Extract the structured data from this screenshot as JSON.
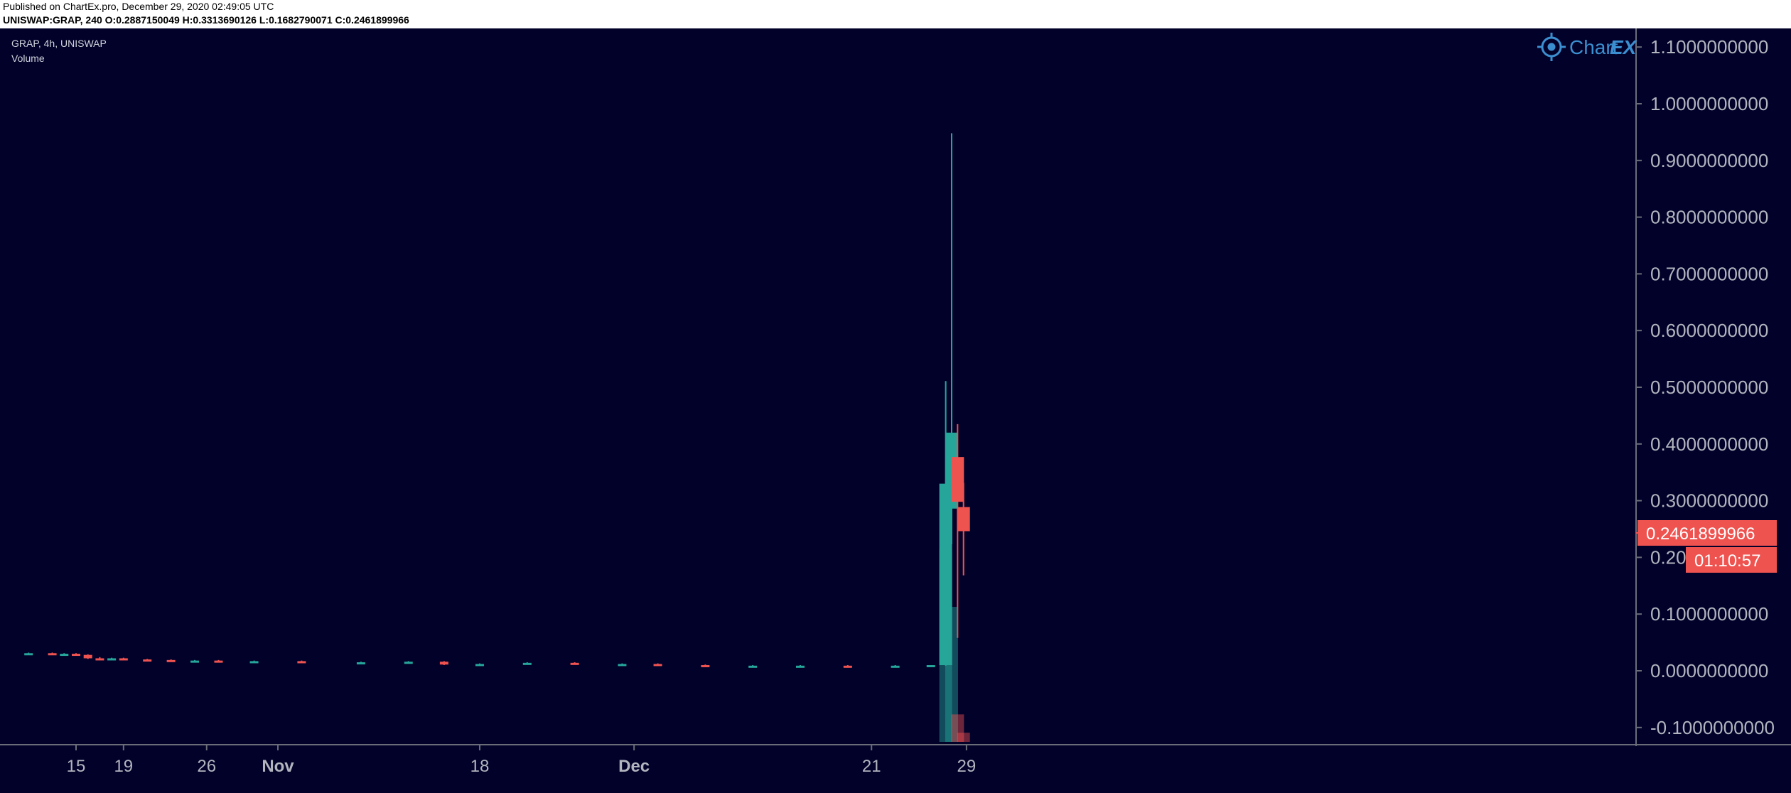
{
  "header": {
    "published": "Published on ChartEx.pro, December 29, 2020 02:49:05 UTC",
    "ohlc": "UNISWAP:GRAP, 240  O:0.2887150049  H:0.3313690126  L:0.1682790071  C:0.2461899966"
  },
  "legend": {
    "symbol": "GRAP, 4h, UNISWAP",
    "volume": "Volume"
  },
  "watermark": {
    "name": "Chart",
    "suffix": "EX"
  },
  "price_tag": {
    "last": "0.2461899966",
    "countdown": "01:10:57"
  },
  "colors": {
    "background": "#02012a",
    "up": "#26a69a",
    "down": "#ef5350",
    "axis_text": "#b2b5be",
    "watermark": "#3b8fd0"
  },
  "chart_data": {
    "type": "candlestick",
    "interval": "4h",
    "y_ticks": [
      "1.1000000000",
      "1.0000000000",
      "0.9000000000",
      "0.8000000000",
      "0.7000000000",
      "0.6000000000",
      "0.5000000000",
      "0.4000000000",
      "0.3000000000",
      "0.20",
      "0.1000000000",
      "0.0000000000",
      "-0.1000000000"
    ],
    "x_ticks": [
      {
        "label": "15",
        "bold": false,
        "date": "2020-10-15"
      },
      {
        "label": "19",
        "bold": false,
        "date": "2020-10-19"
      },
      {
        "label": "26",
        "bold": false,
        "date": "2020-10-26"
      },
      {
        "label": "Nov",
        "bold": true,
        "date": "2020-11-01"
      },
      {
        "label": "18",
        "bold": false,
        "date": "2020-11-18"
      },
      {
        "label": "Dec",
        "bold": true,
        "date": "2020-12-01"
      },
      {
        "label": "21",
        "bold": false,
        "date": "2020-12-21"
      },
      {
        "label": "29",
        "bold": false,
        "date": "2020-12-29"
      }
    ],
    "ylim": [
      -0.12,
      1.12
    ],
    "candles": [
      {
        "date": "2020-10-11",
        "o": 0.03,
        "h": 0.032,
        "l": 0.029,
        "c": 0.031,
        "dir": "up"
      },
      {
        "date": "2020-10-13",
        "o": 0.031,
        "h": 0.032,
        "l": 0.028,
        "c": 0.029,
        "dir": "down"
      },
      {
        "date": "2020-10-14",
        "o": 0.029,
        "h": 0.031,
        "l": 0.028,
        "c": 0.03,
        "dir": "up"
      },
      {
        "date": "2020-10-15",
        "o": 0.03,
        "h": 0.031,
        "l": 0.027,
        "c": 0.028,
        "dir": "down"
      },
      {
        "date": "2020-10-16",
        "o": 0.028,
        "h": 0.029,
        "l": 0.021,
        "c": 0.022,
        "dir": "down"
      },
      {
        "date": "2020-10-17",
        "o": 0.022,
        "h": 0.024,
        "l": 0.02,
        "c": 0.021,
        "dir": "down"
      },
      {
        "date": "2020-10-18",
        "o": 0.021,
        "h": 0.023,
        "l": 0.02,
        "c": 0.022,
        "dir": "up"
      },
      {
        "date": "2020-10-19",
        "o": 0.022,
        "h": 0.023,
        "l": 0.019,
        "c": 0.02,
        "dir": "down"
      },
      {
        "date": "2020-10-21",
        "o": 0.02,
        "h": 0.021,
        "l": 0.018,
        "c": 0.019,
        "dir": "down"
      },
      {
        "date": "2020-10-23",
        "o": 0.019,
        "h": 0.02,
        "l": 0.017,
        "c": 0.018,
        "dir": "down"
      },
      {
        "date": "2020-10-25",
        "o": 0.018,
        "h": 0.019,
        "l": 0.017,
        "c": 0.018,
        "dir": "up"
      },
      {
        "date": "2020-10-27",
        "o": 0.018,
        "h": 0.019,
        "l": 0.016,
        "c": 0.017,
        "dir": "down"
      },
      {
        "date": "2020-10-30",
        "o": 0.017,
        "h": 0.018,
        "l": 0.016,
        "c": 0.017,
        "dir": "up"
      },
      {
        "date": "2020-11-03",
        "o": 0.017,
        "h": 0.018,
        "l": 0.014,
        "c": 0.015,
        "dir": "down"
      },
      {
        "date": "2020-11-08",
        "o": 0.015,
        "h": 0.016,
        "l": 0.014,
        "c": 0.015,
        "dir": "up"
      },
      {
        "date": "2020-11-12",
        "o": 0.015,
        "h": 0.017,
        "l": 0.014,
        "c": 0.016,
        "dir": "up"
      },
      {
        "date": "2020-11-15",
        "o": 0.016,
        "h": 0.017,
        "l": 0.01,
        "c": 0.011,
        "dir": "down"
      },
      {
        "date": "2020-11-18",
        "o": 0.011,
        "h": 0.013,
        "l": 0.01,
        "c": 0.012,
        "dir": "up"
      },
      {
        "date": "2020-11-22",
        "o": 0.012,
        "h": 0.015,
        "l": 0.011,
        "c": 0.014,
        "dir": "up"
      },
      {
        "date": "2020-11-26",
        "o": 0.014,
        "h": 0.015,
        "l": 0.011,
        "c": 0.012,
        "dir": "down"
      },
      {
        "date": "2020-11-30",
        "o": 0.012,
        "h": 0.013,
        "l": 0.011,
        "c": 0.012,
        "dir": "up"
      },
      {
        "date": "2020-12-03",
        "o": 0.012,
        "h": 0.013,
        "l": 0.009,
        "c": 0.01,
        "dir": "down"
      },
      {
        "date": "2020-12-07",
        "o": 0.01,
        "h": 0.011,
        "l": 0.008,
        "c": 0.009,
        "dir": "down"
      },
      {
        "date": "2020-12-11",
        "o": 0.009,
        "h": 0.01,
        "l": 0.008,
        "c": 0.009,
        "dir": "up"
      },
      {
        "date": "2020-12-15",
        "o": 0.009,
        "h": 0.01,
        "l": 0.008,
        "c": 0.009,
        "dir": "up"
      },
      {
        "date": "2020-12-19",
        "o": 0.009,
        "h": 0.01,
        "l": 0.008,
        "c": 0.009,
        "dir": "down"
      },
      {
        "date": "2020-12-23",
        "o": 0.009,
        "h": 0.01,
        "l": 0.008,
        "c": 0.009,
        "dir": "up"
      },
      {
        "date": "2020-12-26",
        "o": 0.009,
        "h": 0.01,
        "l": 0.008,
        "c": 0.01,
        "dir": "up"
      },
      {
        "date": "2020-12-27T06:00",
        "o": 0.01,
        "h": 0.511,
        "l": 0.009,
        "c": 0.33,
        "dir": "up"
      },
      {
        "date": "2020-12-27T18:00",
        "o": 0.286,
        "h": 0.948,
        "l": 0.223,
        "c": 0.42,
        "dir": "up"
      },
      {
        "date": "2020-12-28T06:00",
        "o": 0.377,
        "h": 0.435,
        "l": 0.058,
        "c": 0.298,
        "dir": "down"
      },
      {
        "date": "2020-12-28T18:00",
        "o": 0.2887150049,
        "h": 0.3313690126,
        "l": 0.1682790071,
        "c": 0.2461899966,
        "dir": "down"
      }
    ],
    "volume": [
      {
        "date": "2020-12-27T06:00",
        "v": 0.84,
        "dir": "up"
      },
      {
        "date": "2020-12-27T18:00",
        "v": 0.59,
        "dir": "up"
      },
      {
        "date": "2020-12-28T06:00",
        "v": 0.12,
        "dir": "down"
      },
      {
        "date": "2020-12-28T18:00",
        "v": 0.04,
        "dir": "down"
      }
    ]
  }
}
